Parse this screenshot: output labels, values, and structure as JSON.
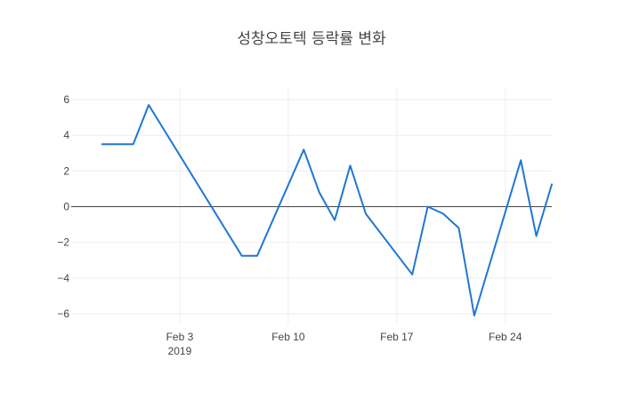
{
  "chart_data": {
    "type": "line",
    "title": "성창오토텍 등락률 변화",
    "xlabel": "",
    "ylabel": "",
    "x_range": [
      "2019-01-27",
      "2019-02-27"
    ],
    "ylim": [
      -6.6,
      6.6
    ],
    "x_ticks": [
      {
        "date": "2019-02-03",
        "label": "Feb 3",
        "sublabel": "2019"
      },
      {
        "date": "2019-02-10",
        "label": "Feb 10",
        "sublabel": ""
      },
      {
        "date": "2019-02-17",
        "label": "Feb 17",
        "sublabel": ""
      },
      {
        "date": "2019-02-24",
        "label": "Feb 24",
        "sublabel": ""
      }
    ],
    "y_ticks": [
      {
        "value": 6,
        "label": "6"
      },
      {
        "value": 4,
        "label": "4"
      },
      {
        "value": 2,
        "label": "2"
      },
      {
        "value": 0,
        "label": "0"
      },
      {
        "value": -2,
        "label": "−2"
      },
      {
        "value": -4,
        "label": "−4"
      },
      {
        "value": -6,
        "label": "−6"
      }
    ],
    "grid": true,
    "zero_line": true,
    "series": [
      {
        "color": "#1f77d4",
        "x": [
          "2019-01-29",
          "2019-01-30",
          "2019-01-31",
          "2019-02-01",
          "2019-02-07",
          "2019-02-08",
          "2019-02-11",
          "2019-02-12",
          "2019-02-13",
          "2019-02-14",
          "2019-02-15",
          "2019-02-18",
          "2019-02-19",
          "2019-02-20",
          "2019-02-21",
          "2019-02-22",
          "2019-02-25",
          "2019-02-26",
          "2019-02-27"
        ],
        "y": [
          3.5,
          3.5,
          3.5,
          5.7,
          -2.75,
          -2.75,
          3.2,
          0.8,
          -0.75,
          2.3,
          -0.4,
          -3.8,
          0.0,
          -0.4,
          -1.2,
          -6.1,
          2.6,
          -1.65,
          1.25
        ]
      }
    ]
  }
}
